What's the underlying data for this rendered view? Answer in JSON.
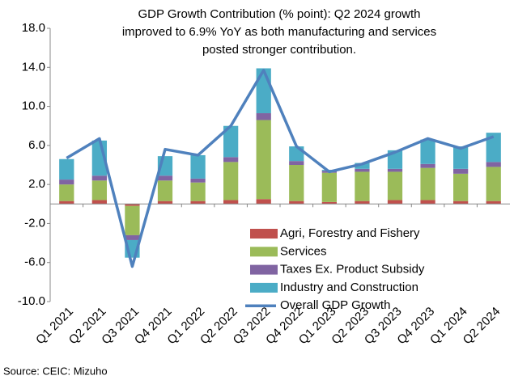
{
  "chart_data": {
    "type": "bar",
    "stacked": true,
    "title": [
      "GDP Growth Contribution (% point): Q2 2024 growth",
      "improved to 6.9% YoY as both manufacturing and services",
      "posted stronger contribution."
    ],
    "source": "Source: CEIC: Mizuho",
    "categories": [
      "Q1 2021",
      "Q2 2021",
      "Q3 2021",
      "Q4 2021",
      "Q1 2022",
      "Q2 2022",
      "Q3 2022",
      "Q4 2022",
      "Q1 2023",
      "Q2 2023",
      "Q3 2023",
      "Q4 2023",
      "Q1 2024",
      "Q2 2024"
    ],
    "series": [
      {
        "name": "Agri, Forestry and Fishery",
        "color": "#c0504d",
        "values": [
          0.3,
          0.4,
          -0.2,
          0.3,
          0.3,
          0.4,
          0.5,
          0.3,
          0.2,
          0.3,
          0.4,
          0.4,
          0.3,
          0.3
        ]
      },
      {
        "name": "Services",
        "color": "#9bbb59",
        "values": [
          1.7,
          2.0,
          -3.0,
          2.1,
          1.9,
          3.9,
          8.1,
          3.7,
          3.0,
          3.0,
          2.9,
          3.3,
          2.8,
          3.5
        ]
      },
      {
        "name": "Taxes Ex. Product Subsidy",
        "color": "#8064a2",
        "values": [
          0.5,
          0.5,
          -0.5,
          0.5,
          0.4,
          0.5,
          0.7,
          0.4,
          0.2,
          0.3,
          0.3,
          0.4,
          0.5,
          0.5
        ]
      },
      {
        "name": "Industry and Construction",
        "color": "#4bacc6",
        "values": [
          2.1,
          3.6,
          -1.8,
          2.0,
          2.4,
          3.2,
          4.6,
          1.5,
          0.1,
          0.6,
          1.9,
          2.5,
          2.3,
          3.0
        ]
      },
      {
        "name": "Overall GDP Growth",
        "color": "#4f81bd",
        "type": "line",
        "values": [
          4.7,
          6.7,
          -6.4,
          5.6,
          5.0,
          8.0,
          13.7,
          5.9,
          3.3,
          4.1,
          5.3,
          6.7,
          5.7,
          6.9
        ]
      }
    ],
    "ylim": [
      -10,
      18
    ],
    "yticks": [
      {
        "value": -10,
        "label": "-10.0"
      },
      {
        "value": -6,
        "label": "-6.0"
      },
      {
        "value": -2,
        "label": "-2.0"
      },
      {
        "value": 2,
        "label": "2.0"
      },
      {
        "value": 6,
        "label": "6.0"
      },
      {
        "value": 10,
        "label": "10.0"
      },
      {
        "value": 14,
        "label": "14.0"
      },
      {
        "value": 18,
        "label": "18.0"
      }
    ],
    "grid": false,
    "legend": "lower right"
  }
}
